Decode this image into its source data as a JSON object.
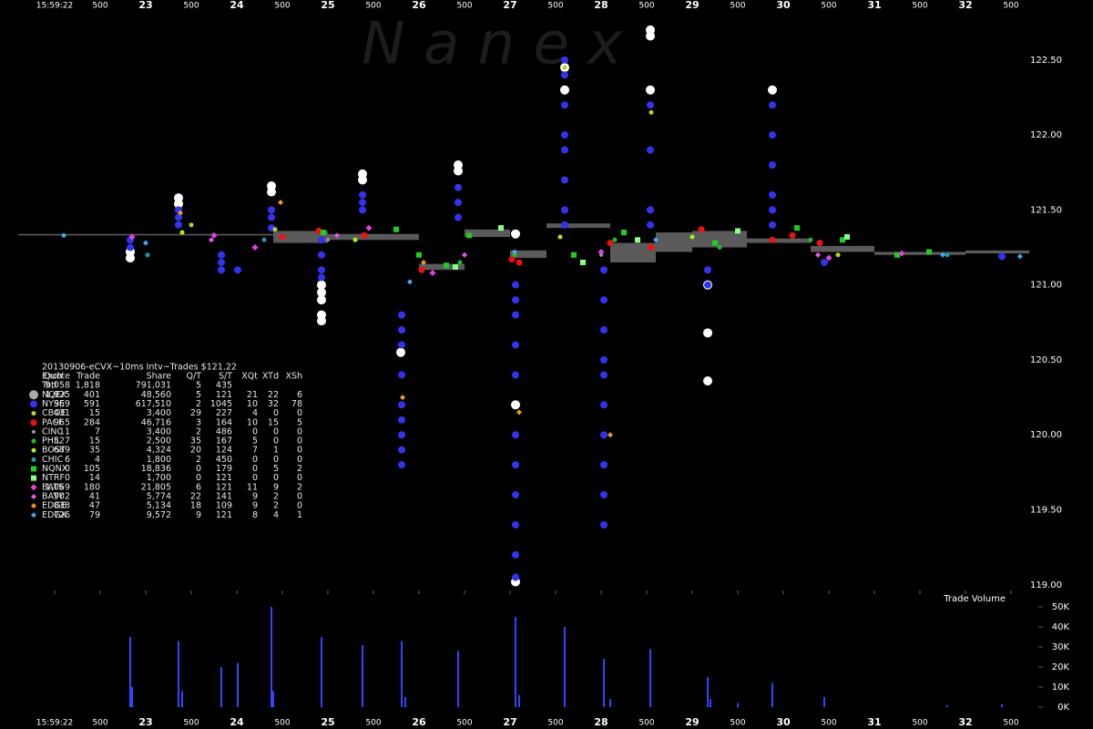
{
  "chart_data": {
    "type": "scatter",
    "watermark": "N a n e x",
    "xlim": [
      -0.6,
      10.8
    ],
    "xticks": [
      {
        "value": 0,
        "label": "15:59:22"
      },
      {
        "value": 0.5,
        "label": "500"
      },
      {
        "value": 1,
        "label": "23"
      },
      {
        "value": 1.5,
        "label": "500"
      },
      {
        "value": 2,
        "label": "24"
      },
      {
        "value": 2.5,
        "label": "500"
      },
      {
        "value": 3,
        "label": "25"
      },
      {
        "value": 3.5,
        "label": "500"
      },
      {
        "value": 4,
        "label": "26"
      },
      {
        "value": 4.5,
        "label": "500"
      },
      {
        "value": 5,
        "label": "27"
      },
      {
        "value": 5.5,
        "label": "500"
      },
      {
        "value": 6,
        "label": "28"
      },
      {
        "value": 6.5,
        "label": "500"
      },
      {
        "value": 7,
        "label": "29"
      },
      {
        "value": 7.5,
        "label": "500"
      },
      {
        "value": 8,
        "label": "30"
      },
      {
        "value": 8.5,
        "label": "500"
      },
      {
        "value": 9,
        "label": "31"
      },
      {
        "value": 9.5,
        "label": "500"
      },
      {
        "value": 10,
        "label": "32"
      },
      {
        "value": 10.5,
        "label": "500"
      }
    ],
    "ylim": [
      118.95,
      122.9
    ],
    "yticks": [
      {
        "value": 119,
        "label": "119.00"
      },
      {
        "value": 119.5,
        "label": "119.50"
      },
      {
        "value": 120,
        "label": "120.00"
      },
      {
        "value": 120.5,
        "label": "120.50"
      },
      {
        "value": 121,
        "label": "121.00"
      },
      {
        "value": 121.5,
        "label": "121.50"
      },
      {
        "value": 122,
        "label": "122.00"
      },
      {
        "value": 122.5,
        "label": "122.50"
      }
    ],
    "quote_band": {
      "color": "#5a5a5a",
      "x": [
        -0.4,
        2.4,
        3.0,
        4.0,
        4.5,
        5.0,
        5.4,
        6.1,
        6.6,
        7.0,
        7.6,
        8.3,
        9.0,
        10.0
      ],
      "low": [
        121.33,
        121.28,
        121.3,
        121.1,
        121.32,
        121.18,
        121.38,
        121.15,
        121.22,
        121.25,
        121.28,
        121.22,
        121.2,
        121.21
      ],
      "high": [
        121.34,
        121.36,
        121.34,
        121.14,
        121.37,
        121.23,
        121.41,
        121.28,
        121.35,
        121.36,
        121.31,
        121.26,
        121.22,
        121.23
      ]
    },
    "table_title": "20130906-eCVX~10ms Intv~Trades $121.22",
    "table_columns": [
      "Exch",
      "Quote",
      "Trade",
      "Share",
      "Q/T",
      "S/T",
      "XQt",
      "XTd",
      "XSh"
    ],
    "total": {
      "name": "Totl",
      "cells": [
        "9,058",
        "1,818",
        "791,031",
        "5",
        "435"
      ]
    },
    "series": [
      {
        "name": "NQEX",
        "color": "#ffffff",
        "legend_color": "#aaaaaa",
        "marker": "circle",
        "size": 5,
        "cells": [
          "1,925",
          "401",
          "48,560",
          "5",
          "121",
          "21",
          "22",
          "6"
        ],
        "x": [
          0.83,
          0.83,
          1.36,
          1.36,
          2.38,
          2.38,
          2.93,
          2.93,
          2.93,
          2.93,
          2.93,
          3.38,
          3.38,
          3.8,
          4.43,
          4.43,
          5.06,
          5.06,
          5.6,
          5.6,
          6.54,
          6.54,
          6.54,
          7.17,
          7.17,
          7.88,
          5.06,
          7.17
        ],
        "values": [
          121.22,
          121.18,
          121.58,
          121.54,
          121.66,
          121.62,
          121.0,
          120.95,
          120.9,
          120.8,
          120.76,
          121.74,
          121.7,
          120.55,
          121.8,
          121.76,
          121.34,
          120.2,
          122.45,
          122.3,
          122.66,
          122.7,
          122.3,
          120.68,
          120.36,
          122.3,
          119.02,
          121.0
        ]
      },
      {
        "name": "NYSE",
        "color": "#3333ee",
        "marker": "circle",
        "size": 4,
        "cells": [
          "969",
          "591",
          "617,510",
          "2",
          "1045",
          "10",
          "32",
          "78"
        ],
        "x": [
          0.83,
          0.83,
          1.36,
          1.36,
          1.36,
          1.83,
          1.83,
          1.83,
          2.01,
          2.38,
          2.38,
          2.38,
          2.93,
          2.93,
          2.93,
          2.93,
          3.38,
          3.38,
          3.38,
          3.81,
          3.81,
          3.81,
          3.81,
          3.81,
          3.81,
          3.81,
          3.81,
          3.81,
          4.43,
          4.43,
          4.43,
          5.06,
          5.06,
          5.06,
          5.06,
          5.06,
          5.06,
          5.06,
          5.06,
          5.06,
          5.06,
          5.06,
          5.6,
          5.6,
          5.6,
          5.6,
          5.6,
          5.6,
          5.6,
          5.6,
          6.03,
          6.03,
          6.03,
          6.03,
          6.03,
          6.03,
          6.03,
          6.03,
          6.03,
          6.03,
          6.54,
          6.54,
          6.54,
          6.54,
          7.17,
          7.17,
          7.88,
          7.88,
          7.88,
          7.88,
          7.88,
          7.88,
          8.45,
          10.4
        ],
        "values": [
          121.3,
          121.25,
          121.45,
          121.4,
          121.5,
          121.2,
          121.15,
          121.1,
          121.1,
          121.5,
          121.45,
          121.38,
          121.3,
          121.2,
          121.1,
          121.05,
          121.55,
          121.5,
          121.6,
          120.8,
          120.7,
          120.6,
          120.4,
          120.2,
          120.1,
          120.0,
          119.9,
          119.8,
          121.65,
          121.55,
          121.45,
          121.0,
          120.9,
          120.8,
          120.6,
          120.4,
          120.0,
          119.8,
          119.6,
          119.4,
          119.2,
          119.05,
          122.5,
          122.4,
          122.2,
          122.0,
          121.9,
          121.7,
          121.5,
          121.4,
          121.1,
          120.9,
          120.7,
          120.5,
          120.4,
          120.2,
          120.0,
          119.8,
          119.6,
          119.4,
          122.2,
          121.9,
          121.5,
          121.4,
          121.1,
          121.0,
          122.2,
          122.0,
          121.8,
          121.6,
          121.5,
          121.4,
          121.15,
          121.19
        ]
      },
      {
        "name": "CBOE",
        "color": "#b5d334",
        "marker": "circle",
        "size": 2.5,
        "cells": [
          "431",
          "15",
          "3,400",
          "29",
          "227",
          "4",
          "0",
          "0"
        ],
        "x": [
          1.5,
          2.42,
          5.6,
          6.55,
          8.6
        ],
        "values": [
          121.4,
          121.37,
          122.45,
          122.15,
          121.2
        ]
      },
      {
        "name": "PACF",
        "color": "#ee1111",
        "marker": "circle",
        "size": 3.5,
        "cells": [
          "965",
          "284",
          "46,716",
          "3",
          "164",
          "10",
          "15",
          "5"
        ],
        "x": [
          2.5,
          3.4,
          4.03,
          5.1,
          5.02,
          6.1,
          6.55,
          7.1,
          7.88,
          8.1,
          8.4,
          2.9
        ],
        "values": [
          121.32,
          121.33,
          121.1,
          121.15,
          121.17,
          121.28,
          121.25,
          121.37,
          121.3,
          121.33,
          121.28,
          121.36
        ]
      },
      {
        "name": "CINC",
        "color": "#999999",
        "marker": "circle",
        "size": 2,
        "cells": [
          "11",
          "7",
          "3,400",
          "2",
          "486",
          "0",
          "0",
          "0"
        ],
        "x": [
          3.0,
          6.0
        ],
        "values": [
          121.3,
          121.2
        ]
      },
      {
        "name": "PHIL",
        "color": "#22bb22",
        "marker": "circle",
        "size": 2.5,
        "cells": [
          "527",
          "15",
          "2,500",
          "35",
          "167",
          "5",
          "0",
          "0"
        ],
        "x": [
          4.45,
          5.05,
          7.3,
          8.3,
          6.15
        ],
        "values": [
          121.15,
          121.2,
          121.25,
          121.3,
          121.3
        ]
      },
      {
        "name": "BOST",
        "color": "#aaee22",
        "marker": "circle",
        "size": 2.5,
        "cells": [
          "689",
          "35",
          "4,324",
          "20",
          "124",
          "7",
          "1",
          "0"
        ],
        "x": [
          1.4,
          3.3,
          5.55,
          7.0
        ],
        "values": [
          121.35,
          121.3,
          121.32,
          121.32
        ]
      },
      {
        "name": "CHIC",
        "color": "#2299aa",
        "marker": "circle",
        "size": 2.5,
        "cells": [
          "6",
          "4",
          "1,800",
          "2",
          "450",
          "0",
          "0",
          "0"
        ],
        "x": [
          1.02,
          2.3,
          9.8
        ],
        "values": [
          121.2,
          121.3,
          121.2
        ]
      },
      {
        "name": "NQNX",
        "color": "#22cc22",
        "marker": "square",
        "size": 3,
        "cells": [
          "0",
          "105",
          "18,836",
          "0",
          "179",
          "0",
          "5",
          "2"
        ],
        "x": [
          2.95,
          3.75,
          4.0,
          4.3,
          4.55,
          5.7,
          6.25,
          7.25,
          8.15,
          8.65,
          9.25,
          9.6
        ],
        "values": [
          121.35,
          121.37,
          121.2,
          121.13,
          121.33,
          121.2,
          121.35,
          121.28,
          121.38,
          121.3,
          121.2,
          121.22
        ]
      },
      {
        "name": "NTRF",
        "color": "#88ff88",
        "marker": "square",
        "size": 3,
        "cells": [
          "0",
          "14",
          "1,700",
          "0",
          "121",
          "0",
          "0",
          "0"
        ],
        "x": [
          4.4,
          4.9,
          5.8,
          6.4,
          7.5,
          8.7
        ],
        "values": [
          121.12,
          121.38,
          121.15,
          121.3,
          121.36,
          121.32
        ]
      },
      {
        "name": "BATS",
        "color": "#dd44dd",
        "marker": "diamond",
        "size": 3.5,
        "cells": [
          "1,069",
          "180",
          "21,805",
          "6",
          "121",
          "11",
          "9",
          "2"
        ],
        "x": [
          0.85,
          1.75,
          2.2,
          3.45,
          4.15,
          6.0,
          8.5,
          9.3
        ],
        "values": [
          121.32,
          121.33,
          121.25,
          121.38,
          121.08,
          121.22,
          121.18,
          121.21
        ]
      },
      {
        "name": "BATY",
        "color": "#ee55ee",
        "marker": "diamond",
        "size": 3,
        "cells": [
          "902",
          "41",
          "5,774",
          "22",
          "141",
          "9",
          "2",
          "0"
        ],
        "x": [
          1.72,
          3.1,
          4.5,
          8.38
        ],
        "values": [
          121.3,
          121.33,
          121.2,
          121.2
        ]
      },
      {
        "name": "EDGE",
        "color": "#ee9922",
        "marker": "diamond",
        "size": 3,
        "cells": [
          "838",
          "47",
          "5,134",
          "18",
          "109",
          "9",
          "2",
          "0"
        ],
        "x": [
          1.38,
          2.48,
          3.82,
          5.1,
          6.1,
          4.05
        ],
        "values": [
          121.48,
          121.55,
          120.25,
          120.15,
          120.0,
          121.15
        ]
      },
      {
        "name": "EDGX",
        "color": "#44aaee",
        "marker": "diamond",
        "size": 3,
        "cells": [
          "726",
          "79",
          "9,572",
          "9",
          "121",
          "8",
          "4",
          "1"
        ],
        "x": [
          0.1,
          1.0,
          3.9,
          5.05,
          6.6,
          9.75,
          10.6
        ],
        "values": [
          121.33,
          121.28,
          121.02,
          121.22,
          121.3,
          121.2,
          121.19
        ]
      }
    ],
    "volume": {
      "title": "Trade Volume",
      "color": "#3344ff",
      "ylim": [
        0,
        55000
      ],
      "yticks": [
        {
          "value": 0,
          "label": "0K"
        },
        {
          "value": 10000,
          "label": "10K"
        },
        {
          "value": 20000,
          "label": "20K"
        },
        {
          "value": 30000,
          "label": "30K"
        },
        {
          "value": 40000,
          "label": "40K"
        },
        {
          "value": 50000,
          "label": "50K"
        }
      ],
      "x": [
        0.83,
        0.85,
        1.36,
        1.4,
        1.83,
        2.01,
        2.38,
        2.4,
        2.93,
        3.38,
        3.81,
        3.85,
        4.43,
        5.06,
        5.1,
        5.6,
        6.03,
        6.1,
        6.54,
        7.17,
        7.2,
        7.5,
        7.88,
        8.45,
        9.8,
        10.4
      ],
      "values": [
        35000,
        10000,
        33000,
        8000,
        20000,
        22000,
        50000,
        8000,
        35000,
        31000,
        33000,
        5000,
        28000,
        45000,
        6000,
        40000,
        24000,
        4000,
        29000,
        15000,
        4000,
        2000,
        12000,
        5000,
        1000,
        1500
      ]
    }
  }
}
